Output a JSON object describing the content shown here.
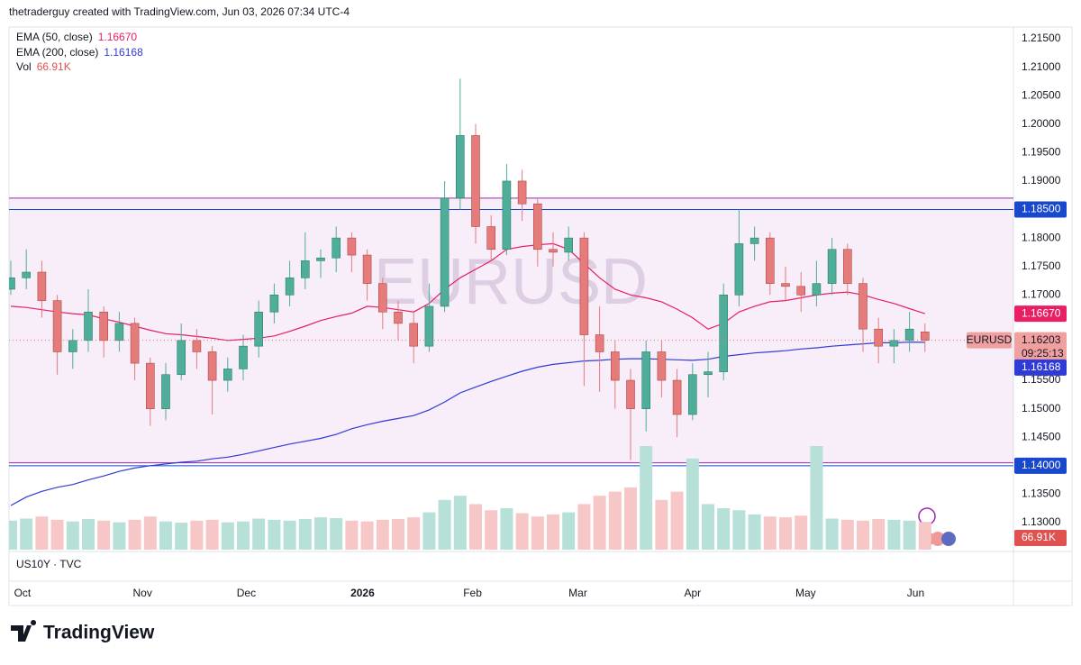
{
  "header": "thetraderguy created with TradingView.com, Jun 03, 2026 07:34 UTC-4",
  "footer_logo": "TradingView",
  "chart_data": {
    "type": "candlestick",
    "symbol": "EURUSD",
    "lower_pane": "US10Y · TVC",
    "candles": {
      "up_color": "#4fae9a",
      "down_color": "#e57b7b",
      "open": [
        1.171,
        1.173,
        1.174,
        1.169,
        1.16,
        1.162,
        1.167,
        1.162,
        1.165,
        1.158,
        1.15,
        1.156,
        1.162,
        1.16,
        1.155,
        1.157,
        1.161,
        1.167,
        1.17,
        1.173,
        1.176,
        1.1765,
        1.18,
        1.177,
        1.172,
        1.167,
        1.165,
        1.161,
        1.168,
        1.187,
        1.198,
        1.182,
        1.178,
        1.19,
        1.186,
        1.178,
        1.1775,
        1.18,
        1.163,
        1.16,
        1.155,
        1.15,
        1.16,
        1.155,
        1.149,
        1.156,
        1.1565,
        1.17,
        1.179,
        1.18,
        1.172,
        1.1715,
        1.17,
        1.172,
        1.178,
        1.172,
        1.164,
        1.161,
        1.162,
        1.1635
      ],
      "high": [
        1.176,
        1.178,
        1.176,
        1.17,
        1.164,
        1.171,
        1.168,
        1.167,
        1.166,
        1.159,
        1.158,
        1.165,
        1.164,
        1.161,
        1.159,
        1.163,
        1.169,
        1.172,
        1.176,
        1.181,
        1.178,
        1.182,
        1.181,
        1.178,
        1.173,
        1.169,
        1.167,
        1.172,
        1.19,
        1.208,
        1.2,
        1.184,
        1.193,
        1.192,
        1.187,
        1.181,
        1.182,
        1.181,
        1.168,
        1.162,
        1.157,
        1.162,
        1.162,
        1.157,
        1.158,
        1.16,
        1.172,
        1.185,
        1.182,
        1.181,
        1.175,
        1.174,
        1.176,
        1.18,
        1.179,
        1.173,
        1.166,
        1.164,
        1.167,
        1.165
      ],
      "low": [
        1.17,
        1.171,
        1.166,
        1.156,
        1.157,
        1.16,
        1.159,
        1.16,
        1.155,
        1.147,
        1.148,
        1.155,
        1.157,
        1.149,
        1.153,
        1.155,
        1.159,
        1.165,
        1.168,
        1.171,
        1.173,
        1.174,
        1.174,
        1.169,
        1.164,
        1.162,
        1.158,
        1.16,
        1.167,
        1.185,
        1.179,
        1.176,
        1.177,
        1.183,
        1.175,
        1.175,
        1.176,
        1.154,
        1.153,
        1.15,
        1.141,
        1.146,
        1.152,
        1.145,
        1.148,
        1.152,
        1.155,
        1.168,
        1.176,
        1.17,
        1.169,
        1.167,
        1.168,
        1.17,
        1.17,
        1.16,
        1.158,
        1.158,
        1.16,
        1.16
      ],
      "close": [
        1.173,
        1.174,
        1.169,
        1.16,
        1.162,
        1.167,
        1.162,
        1.165,
        1.158,
        1.15,
        1.156,
        1.162,
        1.16,
        1.155,
        1.157,
        1.161,
        1.167,
        1.17,
        1.173,
        1.176,
        1.1765,
        1.18,
        1.177,
        1.172,
        1.167,
        1.165,
        1.161,
        1.168,
        1.187,
        1.198,
        1.182,
        1.178,
        1.19,
        1.186,
        1.178,
        1.1775,
        1.18,
        1.163,
        1.16,
        1.155,
        1.15,
        1.16,
        1.155,
        1.149,
        1.156,
        1.1565,
        1.17,
        1.179,
        1.18,
        1.172,
        1.1715,
        1.17,
        1.172,
        1.178,
        1.172,
        1.164,
        1.161,
        1.162,
        1.164,
        1.16203
      ],
      "last_price_label": "1.16203",
      "countdown": "09:25:13"
    },
    "volume": {
      "name": "Vol",
      "unit_label": "66.91K",
      "color": "#e05252",
      "up_color": "#b7e0d8",
      "down_color": "#f7c6c6",
      "values": [
        70,
        75,
        80,
        72,
        68,
        74,
        70,
        66,
        72,
        80,
        68,
        65,
        70,
        72,
        66,
        68,
        75,
        72,
        70,
        74,
        78,
        76,
        70,
        68,
        72,
        74,
        78,
        90,
        120,
        130,
        110,
        95,
        100,
        88,
        80,
        85,
        90,
        110,
        130,
        140,
        150,
        250,
        120,
        140,
        220,
        110,
        100,
        95,
        85,
        80,
        78,
        82,
        250,
        75,
        72,
        70,
        74,
        72,
        70,
        66.91
      ]
    },
    "series": [
      {
        "name": "EMA (50, close)",
        "color": "#e91e63",
        "last_label": "1.16670",
        "values": [
          1.168,
          1.1678,
          1.1674,
          1.167,
          1.1667,
          1.1665,
          1.1658,
          1.1652,
          1.1645,
          1.1638,
          1.1632,
          1.163,
          1.1627,
          1.1624,
          1.162,
          1.1622,
          1.1624,
          1.1628,
          1.1636,
          1.1645,
          1.1655,
          1.1662,
          1.1668,
          1.168,
          1.1678,
          1.1674,
          1.167,
          1.1685,
          1.171,
          1.173,
          1.1745,
          1.176,
          1.178,
          1.1785,
          1.1788,
          1.179,
          1.178,
          1.1755,
          1.173,
          1.171,
          1.17,
          1.1695,
          1.1688,
          1.1675,
          1.166,
          1.164,
          1.165,
          1.167,
          1.168,
          1.1688,
          1.169,
          1.1695,
          1.17,
          1.1703,
          1.1705,
          1.17,
          1.1692,
          1.1685,
          1.1676,
          1.1667
        ]
      },
      {
        "name": "EMA (200, close)",
        "color": "#2f3bd6",
        "last_label": "1.16168",
        "values": [
          1.133,
          1.1345,
          1.1355,
          1.1362,
          1.1367,
          1.1375,
          1.1382,
          1.139,
          1.1396,
          1.14,
          1.1403,
          1.1406,
          1.1408,
          1.1412,
          1.1415,
          1.142,
          1.1426,
          1.1432,
          1.1438,
          1.1443,
          1.1448,
          1.1455,
          1.1465,
          1.1472,
          1.1478,
          1.1483,
          1.1488,
          1.1498,
          1.1512,
          1.1528,
          1.1538,
          1.1548,
          1.1557,
          1.1566,
          1.1573,
          1.1578,
          1.1581,
          1.1584,
          1.1585,
          1.1587,
          1.1588,
          1.1588,
          1.1587,
          1.1586,
          1.1585,
          1.1587,
          1.1592,
          1.1595,
          1.1598,
          1.16,
          1.1602,
          1.1605,
          1.1607,
          1.161,
          1.1612,
          1.1614,
          1.1616,
          1.1616,
          1.1617,
          1.16168
        ]
      }
    ],
    "zone": {
      "top": 1.187,
      "bottom": 1.1405,
      "color": "#9c27b0"
    },
    "levels": [
      {
        "value": 1.185,
        "label": "1.18500",
        "color": "#1848cc"
      },
      {
        "value": 1.14,
        "label": "1.14000",
        "color": "#1848cc"
      }
    ],
    "ylim": [
      1.13,
      1.215
    ],
    "yticks": [
      {
        "value": 1.215,
        "label": "1.21500"
      },
      {
        "value": 1.21,
        "label": "1.21000"
      },
      {
        "value": 1.205,
        "label": "1.20500"
      },
      {
        "value": 1.2,
        "label": "1.20000"
      },
      {
        "value": 1.195,
        "label": "1.19500"
      },
      {
        "value": 1.19,
        "label": "1.19000"
      },
      {
        "value": 1.18,
        "label": "1.18000"
      },
      {
        "value": 1.175,
        "label": "1.17500"
      },
      {
        "value": 1.17,
        "label": "1.17000"
      },
      {
        "value": 1.155,
        "label": "1.15500"
      },
      {
        "value": 1.15,
        "label": "1.15000"
      },
      {
        "value": 1.145,
        "label": "1.14500"
      },
      {
        "value": 1.135,
        "label": "1.13500"
      },
      {
        "value": 1.13,
        "label": "1.13000"
      }
    ],
    "xticks": [
      {
        "value": 0.75,
        "label": "Oct"
      },
      {
        "value": 8.5,
        "label": "Nov"
      },
      {
        "value": 15.2,
        "label": "Dec"
      },
      {
        "value": 22.7,
        "label": "2026"
      },
      {
        "value": 29.8,
        "label": "Feb"
      },
      {
        "value": 36.6,
        "label": "Mar"
      },
      {
        "value": 44,
        "label": "Apr"
      },
      {
        "value": 51.3,
        "label": "May"
      },
      {
        "value": 58.4,
        "label": "Jun"
      }
    ]
  }
}
